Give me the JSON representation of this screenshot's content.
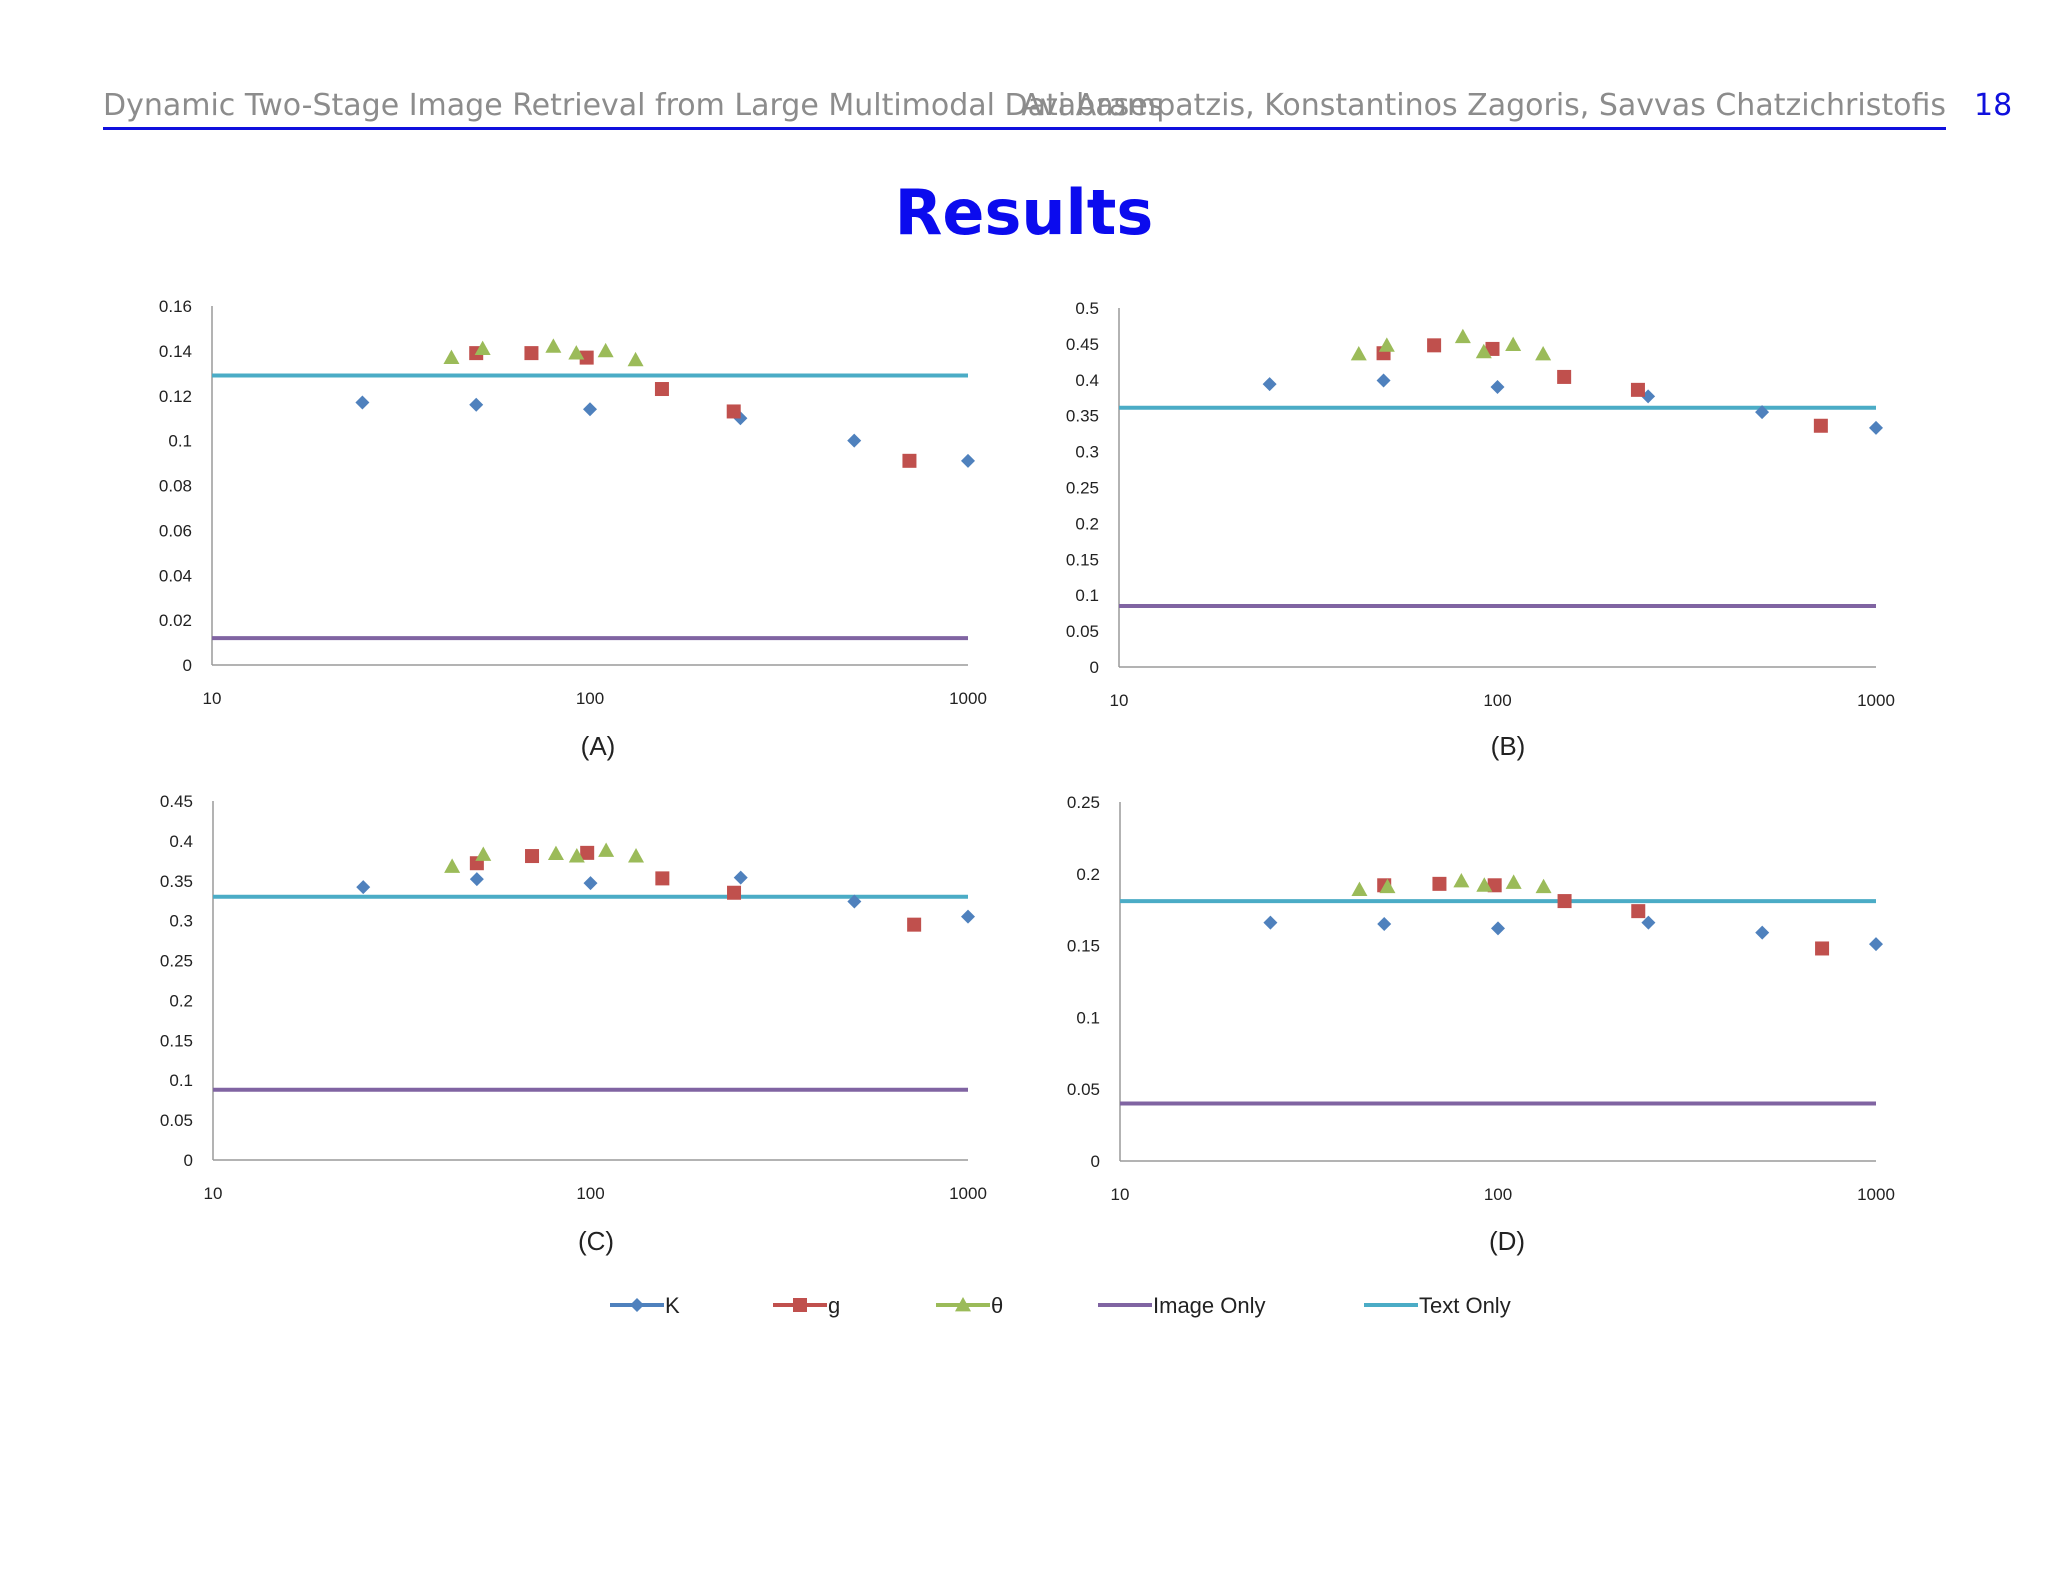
{
  "header": {
    "left": "Dynamic Two-Stage Image Retrieval from Large Multimodal Databases",
    "right": "Avi Arampatzis, Konstantinos Zagoris, Savvas Chatzichristofis",
    "page_number": "18",
    "accent_color": "#1010dd"
  },
  "slide": {
    "title": "Results",
    "title_color": "#0b0bee"
  },
  "legend": [
    {
      "name": "K",
      "marker": "diamond",
      "color": "#4f81bd"
    },
    {
      "name": "g",
      "marker": "square",
      "color": "#c0504d"
    },
    {
      "name": "θ",
      "marker": "triangle",
      "color": "#9bbb59"
    },
    {
      "name": "Image Only",
      "marker": "line",
      "color": "#8064a2"
    },
    {
      "name": "Text Only",
      "marker": "line",
      "color": "#4bacc6"
    }
  ],
  "chart_data": [
    {
      "type": "scatter",
      "caption": "(A)",
      "x_scale": "log",
      "xlim": [
        10,
        1000
      ],
      "xticks": [
        "10",
        "100",
        "1000"
      ],
      "ylim": [
        0,
        0.16
      ],
      "yticks": [
        "0",
        "0.02",
        "0.04",
        "0.06",
        "0.08",
        "0.1",
        "0.12",
        "0.14",
        "0.16"
      ],
      "series": [
        {
          "name": "K",
          "x": [
            25,
            50,
            100,
            250,
            500,
            1000
          ],
          "y": [
            0.117,
            0.116,
            0.114,
            0.11,
            0.1,
            0.091
          ]
        },
        {
          "name": "g",
          "x": [
            50,
            70,
            98,
            155,
            240,
            700
          ],
          "y": [
            0.139,
            0.139,
            0.137,
            0.123,
            0.113,
            0.091
          ]
        },
        {
          "name": "θ",
          "x": [
            43,
            52,
            80,
            92,
            110,
            132
          ],
          "y": [
            0.137,
            0.141,
            0.142,
            0.139,
            0.14,
            0.136
          ]
        }
      ],
      "hlines": [
        {
          "name": "Image Only",
          "y": 0.012
        },
        {
          "name": "Text Only",
          "y": 0.129
        }
      ]
    },
    {
      "type": "scatter",
      "caption": "(B)",
      "x_scale": "log",
      "xlim": [
        10,
        1000
      ],
      "xticks": [
        "10",
        "100",
        "1000"
      ],
      "ylim": [
        0,
        0.5
      ],
      "yticks": [
        "0",
        "0.05",
        "0.1",
        "0.15",
        "0.2",
        "0.25",
        "0.3",
        "0.35",
        "0.4",
        "0.45",
        "0.5"
      ],
      "series": [
        {
          "name": "K",
          "x": [
            25,
            50,
            100,
            250,
            500,
            1000
          ],
          "y": [
            0.394,
            0.399,
            0.39,
            0.377,
            0.355,
            0.333
          ]
        },
        {
          "name": "g",
          "x": [
            50,
            68,
            97,
            150,
            235,
            715
          ],
          "y": [
            0.437,
            0.448,
            0.443,
            0.404,
            0.386,
            0.336
          ]
        },
        {
          "name": "θ",
          "x": [
            43,
            51,
            81,
            92,
            110,
            132
          ],
          "y": [
            0.436,
            0.448,
            0.46,
            0.439,
            0.449,
            0.436
          ]
        }
      ],
      "hlines": [
        {
          "name": "Image Only",
          "y": 0.085
        },
        {
          "name": "Text Only",
          "y": 0.361
        }
      ]
    },
    {
      "type": "scatter",
      "caption": "(C)",
      "x_scale": "log",
      "xlim": [
        10,
        1000
      ],
      "xticks": [
        "10",
        "100",
        "1000"
      ],
      "ylim": [
        0,
        0.45
      ],
      "yticks": [
        "0",
        "0.05",
        "0.1",
        "0.15",
        "0.2",
        "0.25",
        "0.3",
        "0.35",
        "0.4",
        "0.45"
      ],
      "series": [
        {
          "name": "K",
          "x": [
            25,
            50,
            100,
            250,
            500,
            1000
          ],
          "y": [
            0.342,
            0.352,
            0.347,
            0.354,
            0.324,
            0.305
          ]
        },
        {
          "name": "g",
          "x": [
            50,
            70,
            98,
            155,
            240,
            720
          ],
          "y": [
            0.372,
            0.381,
            0.385,
            0.353,
            0.335,
            0.295
          ]
        },
        {
          "name": "θ",
          "x": [
            43,
            52,
            81,
            92,
            110,
            132
          ],
          "y": [
            0.368,
            0.383,
            0.384,
            0.381,
            0.388,
            0.381
          ]
        }
      ],
      "hlines": [
        {
          "name": "Image Only",
          "y": 0.088
        },
        {
          "name": "Text Only",
          "y": 0.33
        }
      ]
    },
    {
      "type": "scatter",
      "caption": "(D)",
      "x_scale": "log",
      "xlim": [
        10,
        1000
      ],
      "xticks": [
        "10",
        "100",
        "1000"
      ],
      "ylim": [
        0,
        0.25
      ],
      "yticks": [
        "0",
        "0.05",
        "0.1",
        "0.15",
        "0.2",
        "0.25"
      ],
      "series": [
        {
          "name": "K",
          "x": [
            25,
            50,
            100,
            250,
            500,
            1000
          ],
          "y": [
            0.166,
            0.165,
            0.162,
            0.166,
            0.159,
            0.151
          ]
        },
        {
          "name": "g",
          "x": [
            50,
            70,
            98,
            150,
            235,
            720
          ],
          "y": [
            0.192,
            0.193,
            0.192,
            0.181,
            0.174,
            0.148
          ]
        },
        {
          "name": "θ",
          "x": [
            43,
            51,
            80,
            92,
            110,
            132
          ],
          "y": [
            0.189,
            0.191,
            0.195,
            0.192,
            0.194,
            0.191
          ]
        }
      ],
      "hlines": [
        {
          "name": "Image Only",
          "y": 0.04
        },
        {
          "name": "Text Only",
          "y": 0.181
        }
      ]
    }
  ]
}
